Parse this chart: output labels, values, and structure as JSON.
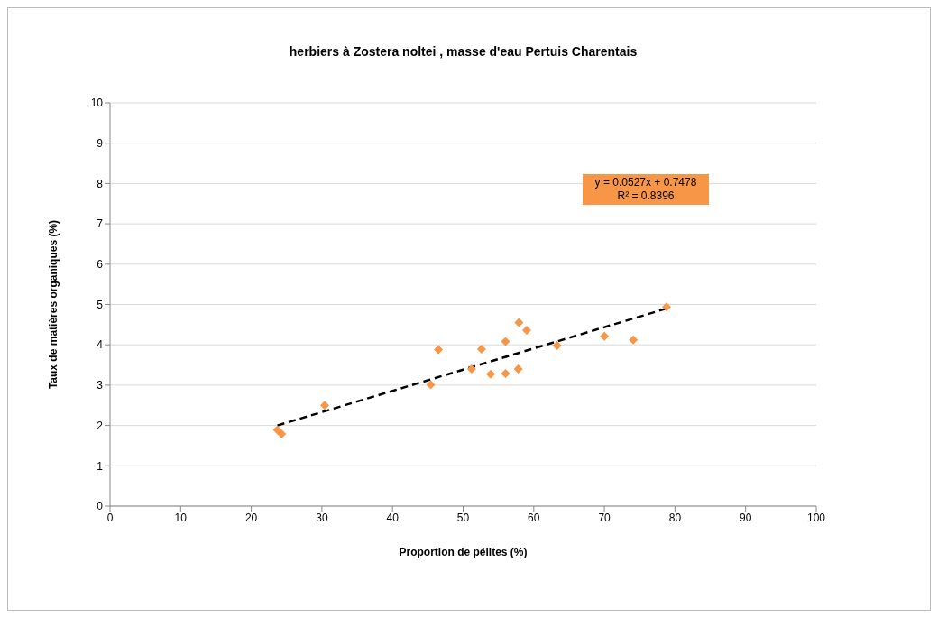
{
  "chart_data": {
    "type": "scatter",
    "title": "herbiers à Zostera noltei , masse d'eau Pertuis Charentais",
    "xlabel": "Proportion de pélites (%)",
    "ylabel": "Taux de matières organiques (%)",
    "series": [
      {
        "color": "#f79646",
        "x": [
          23.7,
          24.3,
          30.4,
          45.4,
          46.5,
          51.2,
          52.6,
          53.9,
          56.0,
          56.0,
          57.8,
          57.9,
          59.0,
          63.3,
          70.0,
          74.1,
          78.8
        ],
        "values": [
          1.89,
          1.79,
          2.5,
          3.01,
          3.88,
          3.4,
          3.89,
          3.27,
          4.08,
          3.29,
          3.4,
          4.55,
          4.36,
          3.98,
          4.21,
          4.12,
          4.94
        ]
      },
      {
        "type": "line",
        "color": "#000000",
        "x": [
          23.7,
          78.8
        ],
        "values": [
          2.0,
          4.9
        ],
        "line_style": "dashed",
        "marker": "none"
      }
    ],
    "annotations": [
      "y = 0.0527x + 0.7478",
      "R² = 0.8396"
    ],
    "xlim": [
      0,
      100
    ],
    "xticks": [
      0,
      10,
      20,
      30,
      40,
      50,
      60,
      70,
      80,
      90,
      100
    ],
    "ylim": [
      0,
      10
    ],
    "yticks": [
      0,
      1,
      2,
      3,
      4,
      5,
      6,
      7,
      8,
      9,
      10
    ],
    "grid": "y",
    "legend": false,
    "marker": "diamond"
  }
}
